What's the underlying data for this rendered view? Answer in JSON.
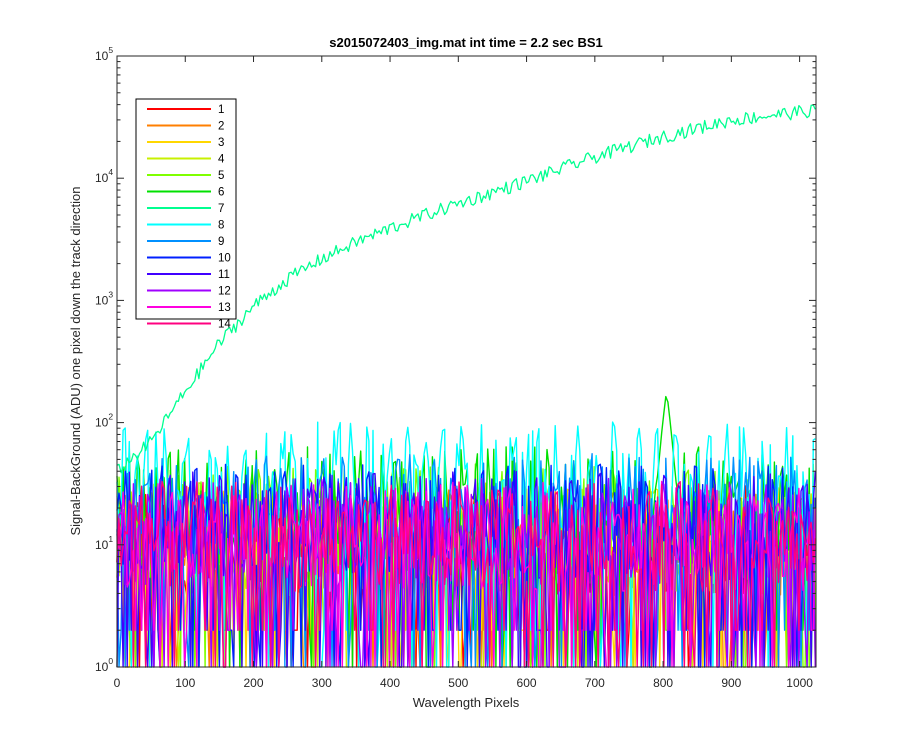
{
  "chart_data": {
    "type": "line",
    "title": "s2015072403_img.mat int time = 2.2 sec   BS1",
    "xlabel": "Wavelength Pixels",
    "ylabel": "Signal-BackGround (ADU) one pixel down the track direction",
    "xlim": [
      0,
      1024
    ],
    "ylim": [
      1,
      100000
    ],
    "yscale": "log",
    "x_ticks": [
      "0",
      "100",
      "200",
      "300",
      "400",
      "500",
      "600",
      "700",
      "800",
      "900",
      "1000"
    ],
    "y_ticks": [
      {
        "base": "10",
        "exp": "0"
      },
      {
        "base": "10",
        "exp": "1"
      },
      {
        "base": "10",
        "exp": "2"
      },
      {
        "base": "10",
        "exp": "3"
      },
      {
        "base": "10",
        "exp": "4"
      },
      {
        "base": "10",
        "exp": "5"
      }
    ],
    "grid": false,
    "legend_position": "top-left",
    "series": [
      {
        "name": "1",
        "color": "#ff0000",
        "level": 12
      },
      {
        "name": "2",
        "color": "#ff7f00",
        "level": 12
      },
      {
        "name": "3",
        "color": "#ffd700",
        "level": 12
      },
      {
        "name": "4",
        "color": "#c8f000",
        "level": 13
      },
      {
        "name": "5",
        "color": "#7fff00",
        "level": 18
      },
      {
        "name": "6",
        "color": "#00e000",
        "level": 25,
        "peak": {
          "x": 805,
          "y": 180
        }
      },
      {
        "name": "7",
        "color": "#00ff90",
        "curve": [
          [
            0,
            40
          ],
          [
            50,
            70
          ],
          [
            100,
            180
          ],
          [
            150,
            450
          ],
          [
            200,
            900
          ],
          [
            250,
            1500
          ],
          [
            300,
            2200
          ],
          [
            350,
            3000
          ],
          [
            400,
            3900
          ],
          [
            450,
            5000
          ],
          [
            500,
            6200
          ],
          [
            600,
            9500
          ],
          [
            700,
            15000
          ],
          [
            800,
            22000
          ],
          [
            900,
            30000
          ],
          [
            1000,
            35000
          ],
          [
            1024,
            36000
          ]
        ]
      },
      {
        "name": "8",
        "color": "#00ffff",
        "level": 40
      },
      {
        "name": "9",
        "color": "#0090ff",
        "level": 22
      },
      {
        "name": "10",
        "color": "#0020ff",
        "level": 18
      },
      {
        "name": "11",
        "color": "#4000ff",
        "level": 16
      },
      {
        "name": "12",
        "color": "#a000ff",
        "level": 14
      },
      {
        "name": "13",
        "color": "#ff00e0",
        "level": 13
      },
      {
        "name": "14",
        "color": "#ff0080",
        "level": 13
      }
    ]
  }
}
